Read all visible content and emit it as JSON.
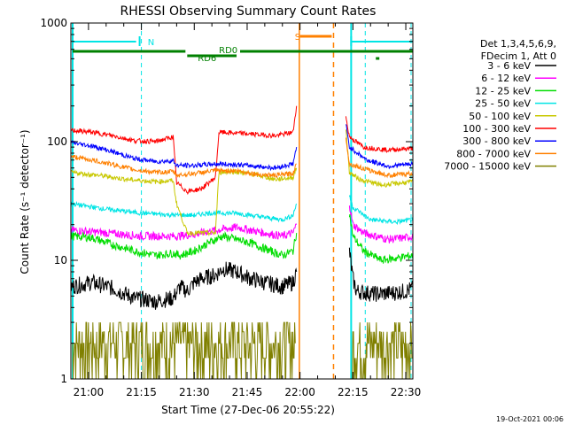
{
  "chart_data": {
    "type": "line",
    "title": "RHESSI Observing Summary Count Rates",
    "xlabel": "Start Time (27-Dec-06 20:55:22)",
    "ylabel": "Count Rate (s⁻¹ detector⁻¹)",
    "x_range_minutes_since_2055": [
      0,
      97
    ],
    "ylim": [
      1,
      1000
    ],
    "y_scale": "log",
    "x_ticks": [
      {
        "label": "21:00",
        "minute": 5
      },
      {
        "label": "21:15",
        "minute": 20
      },
      {
        "label": "21:30",
        "minute": 35
      },
      {
        "label": "21:45",
        "minute": 50
      },
      {
        "label": "22:00",
        "minute": 65
      },
      {
        "label": "22:15",
        "minute": 80
      },
      {
        "label": "22:30",
        "minute": 95
      }
    ],
    "y_ticks": [
      {
        "label": "1",
        "value": 1
      },
      {
        "label": "10",
        "value": 10
      },
      {
        "label": "100",
        "value": 100
      },
      {
        "label": "1000",
        "value": 1000
      }
    ],
    "legend_header": [
      "Det 1,3,4,5,6,9,",
      "FDecim 1, Att 0"
    ],
    "series": [
      {
        "name": "3 - 6 keV",
        "color": "#000000",
        "points": [
          [
            0,
            6
          ],
          [
            6,
            6.5
          ],
          [
            12,
            5.8
          ],
          [
            18,
            4.8
          ],
          [
            24,
            4.5
          ],
          [
            29,
            4.8
          ],
          [
            31,
            6
          ],
          [
            33,
            5.5
          ],
          [
            35,
            6.5
          ],
          [
            37,
            7
          ],
          [
            41,
            7.5
          ],
          [
            43,
            8.5
          ],
          [
            47,
            8
          ],
          [
            51,
            7
          ],
          [
            55,
            6.5
          ],
          [
            60,
            6
          ],
          [
            63,
            6.5
          ],
          [
            64,
            8
          ]
        ],
        "points2": [
          [
            79,
            12
          ],
          [
            80,
            7
          ],
          [
            81,
            5.5
          ],
          [
            86,
            5.2
          ],
          [
            91,
            5.3
          ],
          [
            95,
            5.5
          ],
          [
            97,
            5.8
          ]
        ]
      },
      {
        "name": "6 - 12 keV",
        "color": "#ff00ff",
        "points": [
          [
            0,
            18
          ],
          [
            10,
            17
          ],
          [
            20,
            16
          ],
          [
            30,
            16
          ],
          [
            35,
            16.5
          ],
          [
            39,
            17.5
          ],
          [
            47,
            19
          ],
          [
            55,
            17
          ],
          [
            60,
            16
          ],
          [
            63,
            17
          ],
          [
            64,
            20
          ]
        ],
        "points2": [
          [
            79,
            30
          ],
          [
            80,
            20
          ],
          [
            83,
            17
          ],
          [
            90,
            15
          ],
          [
            95,
            15.5
          ],
          [
            97,
            16
          ]
        ]
      },
      {
        "name": "12 - 25 keV",
        "color": "#00dd00",
        "points": [
          [
            0,
            16
          ],
          [
            6,
            15.5
          ],
          [
            12,
            13.5
          ],
          [
            18,
            12
          ],
          [
            24,
            11
          ],
          [
            29,
            11.5
          ],
          [
            31,
            11
          ],
          [
            35,
            12
          ],
          [
            39,
            14
          ],
          [
            43,
            16
          ],
          [
            47,
            15
          ],
          [
            51,
            14
          ],
          [
            55,
            12.5
          ],
          [
            60,
            11
          ],
          [
            63,
            12
          ],
          [
            64,
            17
          ]
        ],
        "points2": [
          [
            79,
            25
          ],
          [
            80,
            16
          ],
          [
            83,
            12
          ],
          [
            88,
            10
          ],
          [
            93,
            10.5
          ],
          [
            97,
            11
          ]
        ]
      },
      {
        "name": "25 - 50 keV",
        "color": "#00e5e5",
        "points": [
          [
            0,
            30
          ],
          [
            10,
            27
          ],
          [
            20,
            25
          ],
          [
            30,
            24
          ],
          [
            35,
            24
          ],
          [
            39,
            25
          ],
          [
            47,
            25
          ],
          [
            55,
            23
          ],
          [
            60,
            22
          ],
          [
            63,
            24
          ],
          [
            64,
            30
          ]
        ],
        "points2": [
          [
            79,
            35
          ],
          [
            80,
            28
          ],
          [
            85,
            22
          ],
          [
            92,
            21
          ],
          [
            97,
            22
          ]
        ]
      },
      {
        "name": "50 - 100 keV",
        "color": "#c8c800",
        "points": [
          [
            0,
            55
          ],
          [
            8,
            52
          ],
          [
            16,
            48
          ],
          [
            24,
            46
          ],
          [
            29,
            47
          ],
          [
            30,
            30
          ],
          [
            33,
            17
          ],
          [
            36,
            17
          ],
          [
            41,
            17
          ],
          [
            42,
            55
          ],
          [
            46,
            56
          ],
          [
            52,
            53
          ],
          [
            58,
            48
          ],
          [
            63,
            50
          ],
          [
            64,
            60
          ]
        ],
        "points2": [
          [
            78,
            130
          ],
          [
            79,
            55
          ],
          [
            82,
            48
          ],
          [
            88,
            43
          ],
          [
            94,
            45
          ],
          [
            97,
            46
          ]
        ]
      },
      {
        "name": "100 - 300 keV",
        "color": "#ff0000",
        "points": [
          [
            0,
            125
          ],
          [
            6,
            120
          ],
          [
            12,
            112
          ],
          [
            18,
            102
          ],
          [
            24,
            100
          ],
          [
            29,
            110
          ],
          [
            30,
            45
          ],
          [
            33,
            38
          ],
          [
            37,
            40
          ],
          [
            41,
            50
          ],
          [
            42,
            120
          ],
          [
            47,
            118
          ],
          [
            53,
            115
          ],
          [
            58,
            112
          ],
          [
            63,
            120
          ],
          [
            64,
            200
          ]
        ],
        "points2": [
          [
            78,
            160
          ],
          [
            79,
            110
          ],
          [
            83,
            90
          ],
          [
            90,
            85
          ],
          [
            97,
            88
          ]
        ]
      },
      {
        "name": "300 - 800 keV",
        "color": "#0000ff",
        "points": [
          [
            0,
            98
          ],
          [
            6,
            92
          ],
          [
            12,
            82
          ],
          [
            18,
            72
          ],
          [
            24,
            68
          ],
          [
            29,
            69
          ],
          [
            30,
            63
          ],
          [
            35,
            63
          ],
          [
            41,
            65
          ],
          [
            47,
            64
          ],
          [
            53,
            62
          ],
          [
            58,
            60
          ],
          [
            63,
            65
          ],
          [
            64,
            90
          ]
        ],
        "points2": [
          [
            78,
            140
          ],
          [
            79,
            90
          ],
          [
            84,
            70
          ],
          [
            90,
            62
          ],
          [
            97,
            65
          ]
        ]
      },
      {
        "name": "800 - 7000 keV",
        "color": "#ff8000",
        "points": [
          [
            0,
            75
          ],
          [
            6,
            70
          ],
          [
            12,
            64
          ],
          [
            18,
            58
          ],
          [
            24,
            55
          ],
          [
            29,
            56
          ],
          [
            30,
            52
          ],
          [
            35,
            54
          ],
          [
            41,
            57
          ],
          [
            47,
            57
          ],
          [
            53,
            53
          ],
          [
            58,
            52
          ],
          [
            63,
            54
          ],
          [
            64,
            65
          ]
        ],
        "points2": [
          [
            78,
            110
          ],
          [
            79,
            65
          ],
          [
            84,
            58
          ],
          [
            90,
            52
          ],
          [
            97,
            54
          ]
        ]
      },
      {
        "name": "7000 - 15000 keV",
        "color": "#808000",
        "points": [
          [
            0,
            1.5
          ],
          [
            97,
            1.5
          ]
        ]
      }
    ],
    "annotations": [
      {
        "text": "N",
        "color": "#00e5e5"
      },
      {
        "text": "RD0",
        "color": "#008000"
      },
      {
        "text": "RD6",
        "color": "#008000"
      },
      {
        "text": "S",
        "color": "#ff8000"
      }
    ],
    "timestamp": "19-Oct-2021 00:06"
  }
}
